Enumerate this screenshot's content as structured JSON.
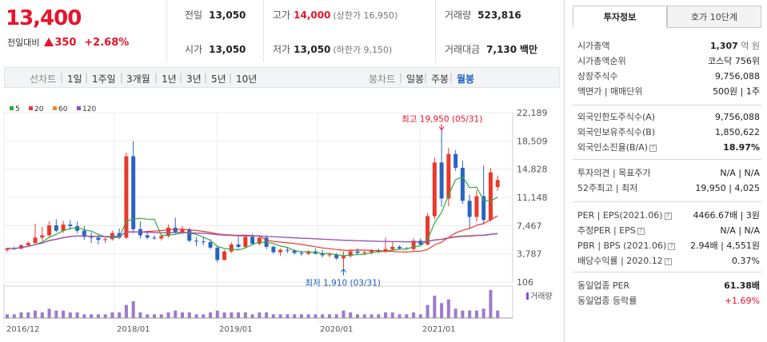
{
  "price": {
    "current": "13,400",
    "change_label": "전일대비",
    "change_amount": "350",
    "change_pct": "+2.68%"
  },
  "stats": {
    "prev_label": "전일",
    "prev_value": "13,050",
    "high_label": "고가",
    "high_value": "14,000",
    "upper_limit": "(상한가 16,950)",
    "volume_label": "거래량",
    "volume_value": "523,816",
    "open_label": "시가",
    "open_value": "13,050",
    "low_label": "저가",
    "low_value": "13,050",
    "lower_limit": "(하한가 9,150)",
    "amount_label": "거래대금",
    "amount_value": "7,130",
    "amount_unit": "백만"
  },
  "period_bar": {
    "line_chart": "선차트",
    "periods": [
      "1일",
      "1주일",
      "3개월",
      "1년",
      "3년",
      "5년",
      "10년"
    ],
    "candle_chart": "봉차트",
    "candles": [
      "일봉",
      "주봉",
      "월봉"
    ]
  },
  "chart_data": {
    "type": "candlestick",
    "legend": [
      {
        "name": "5",
        "color": "#2eab3a"
      },
      {
        "name": "20",
        "color": "#e8392c"
      },
      {
        "name": "60",
        "color": "#f08c24"
      },
      {
        "name": "120",
        "color": "#8a4fc9"
      }
    ],
    "y_ticks": [
      "22,189",
      "18,509",
      "14,828",
      "11,148",
      "7,467",
      "3,787",
      "106"
    ],
    "x_ticks": [
      "2016/12",
      "2018/01",
      "2019/01",
      "2020/01",
      "2021/01"
    ],
    "volume_label": "거래량",
    "high_annotation": "최고 19,950 (05/31)",
    "low_annotation": "최저 1,910 (03/31)",
    "candles": [
      [
        4300,
        4600,
        4000,
        4500
      ],
      [
        4500,
        4700,
        4300,
        4450
      ],
      [
        4450,
        5000,
        4400,
        4900
      ],
      [
        4900,
        5400,
        4800,
        5200
      ],
      [
        5200,
        7700,
        5100,
        5900
      ],
      [
        5900,
        7300,
        5500,
        6200
      ],
      [
        6200,
        8000,
        6000,
        7500
      ],
      [
        7500,
        8300,
        6600,
        6800
      ],
      [
        6800,
        8100,
        6500,
        7600
      ],
      [
        7600,
        8200,
        6900,
        7400
      ],
      [
        7400,
        8000,
        6500,
        6800
      ],
      [
        6800,
        7400,
        5600,
        6000
      ],
      [
        6000,
        6600,
        5200,
        5900
      ],
      [
        5900,
        6300,
        5000,
        5600
      ],
      [
        5600,
        6100,
        5200,
        5700
      ],
      [
        5700,
        6800,
        5500,
        6500
      ],
      [
        6500,
        7100,
        5700,
        5900
      ],
      [
        5900,
        17000,
        5700,
        16500
      ],
      [
        16500,
        18500,
        6500,
        7000
      ],
      [
        7000,
        8000,
        5800,
        6200
      ],
      [
        6200,
        6800,
        5700,
        5900
      ],
      [
        5900,
        6200,
        5600,
        5800
      ],
      [
        5800,
        6300,
        5500,
        6100
      ],
      [
        6100,
        7600,
        5900,
        7200
      ],
      [
        7200,
        8500,
        6400,
        6600
      ],
      [
        6600,
        7400,
        6300,
        7000
      ],
      [
        7000,
        7200,
        5300,
        5500
      ],
      [
        5500,
        6000,
        4800,
        5400
      ],
      [
        5400,
        6000,
        4900,
        5300
      ],
      [
        5300,
        5700,
        4400,
        4600
      ],
      [
        4600,
        4900,
        2700,
        3000
      ],
      [
        3000,
        4300,
        2900,
        4100
      ],
      [
        4100,
        5300,
        3900,
        5000
      ],
      [
        5000,
        6000,
        4400,
        4700
      ],
      [
        4700,
        6300,
        4500,
        6000
      ],
      [
        6000,
        6400,
        5000,
        5100
      ],
      [
        5100,
        6200,
        4900,
        5900
      ],
      [
        5900,
        6200,
        4400,
        4700
      ],
      [
        4700,
        4900,
        3800,
        4000
      ],
      [
        4000,
        4500,
        3500,
        4300
      ],
      [
        4300,
        4700,
        3900,
        4200
      ],
      [
        4200,
        4400,
        3700,
        3900
      ],
      [
        3900,
        4200,
        3500,
        3800
      ],
      [
        3800,
        4300,
        3600,
        4100
      ],
      [
        4100,
        4500,
        3700,
        3800
      ],
      [
        3800,
        4300,
        3300,
        3600
      ],
      [
        3600,
        4000,
        3300,
        3700
      ],
      [
        3700,
        3900,
        3000,
        3200
      ],
      [
        3200,
        4100,
        1910,
        3500
      ],
      [
        3500,
        4400,
        3300,
        4100
      ],
      [
        4100,
        4500,
        3700,
        3900
      ],
      [
        3900,
        4200,
        3600,
        4000
      ],
      [
        4000,
        4400,
        3700,
        4200
      ],
      [
        4200,
        4500,
        3900,
        4100
      ],
      [
        4100,
        5900,
        3900,
        4400
      ],
      [
        4400,
        5400,
        4100,
        4700
      ],
      [
        4700,
        4900,
        4300,
        4500
      ],
      [
        4500,
        4700,
        4300,
        4400
      ],
      [
        4400,
        5800,
        4200,
        5500
      ],
      [
        5500,
        5800,
        4900,
        5000
      ],
      [
        5000,
        9100,
        4900,
        8700
      ],
      [
        8700,
        16300,
        8300,
        15700
      ],
      [
        15700,
        19950,
        9900,
        11000
      ],
      [
        11000,
        17600,
        10000,
        16800
      ],
      [
        16800,
        17300,
        14600,
        15000
      ],
      [
        15000,
        15900,
        10300,
        10700
      ],
      [
        10700,
        11500,
        7000,
        8600
      ],
      [
        8600,
        12100,
        8000,
        11300
      ],
      [
        11300,
        15300,
        7600,
        8200
      ],
      [
        8200,
        15000,
        8000,
        14400
      ],
      [
        12500,
        14000,
        12000,
        13400
      ]
    ],
    "volumes": [
      2,
      2,
      3,
      3,
      4,
      3,
      5,
      4,
      4,
      3,
      3,
      2,
      2,
      2,
      2,
      3,
      3,
      7,
      9,
      3,
      2,
      2,
      2,
      3,
      4,
      3,
      3,
      2,
      2,
      3,
      4,
      3,
      3,
      3,
      3,
      2,
      3,
      3,
      2,
      2,
      2,
      2,
      2,
      2,
      2,
      2,
      2,
      2,
      4,
      3,
      2,
      2,
      2,
      2,
      3,
      3,
      2,
      2,
      3,
      2,
      7,
      12,
      8,
      10,
      5,
      4,
      4,
      4,
      5,
      15,
      4
    ]
  },
  "invest": {
    "tab_active": "투자정보",
    "tab_inactive": "호가 10단계",
    "rows1": [
      {
        "k": "시가총액",
        "v": "1,307",
        "u": "억 원"
      },
      {
        "k": "시가총액순위",
        "v": "코스닥 756위",
        "u": ""
      },
      {
        "k": "상장주식수",
        "v": "9,756,088",
        "u": ""
      },
      {
        "k": "액면가 | 매매단위",
        "v": "500원 | 1주",
        "u": ""
      }
    ],
    "rows2": [
      {
        "k": "외국인한도주식수(A)",
        "v": "9,756,088"
      },
      {
        "k": "외국인보유주식수(B)",
        "v": "1,850,622"
      },
      {
        "k": "외국인소진율(B/A)",
        "v": "18.97%"
      }
    ],
    "rows3": [
      {
        "k": "투자의견 | 목표주가",
        "v": "N/A | N/A"
      },
      {
        "k": "52주최고 | 최저",
        "v": "19,950 | 4,025"
      }
    ],
    "rows4": [
      {
        "k": "PER | EPS(2021.06)",
        "v": "4466.67배 | 3원"
      },
      {
        "k": "추정PER | EPS",
        "v": "N/A | N/A"
      },
      {
        "k": "PBR | BPS (2021.06)",
        "v": "2.94배 | 4,551원"
      },
      {
        "k": "배당수익률 | 2020.12",
        "v": "0.37%"
      }
    ],
    "rows5": [
      {
        "k": "동일업종 PER",
        "v": "61.38배"
      },
      {
        "k": "동일업종 등락률",
        "v": "+1.69%"
      }
    ]
  }
}
